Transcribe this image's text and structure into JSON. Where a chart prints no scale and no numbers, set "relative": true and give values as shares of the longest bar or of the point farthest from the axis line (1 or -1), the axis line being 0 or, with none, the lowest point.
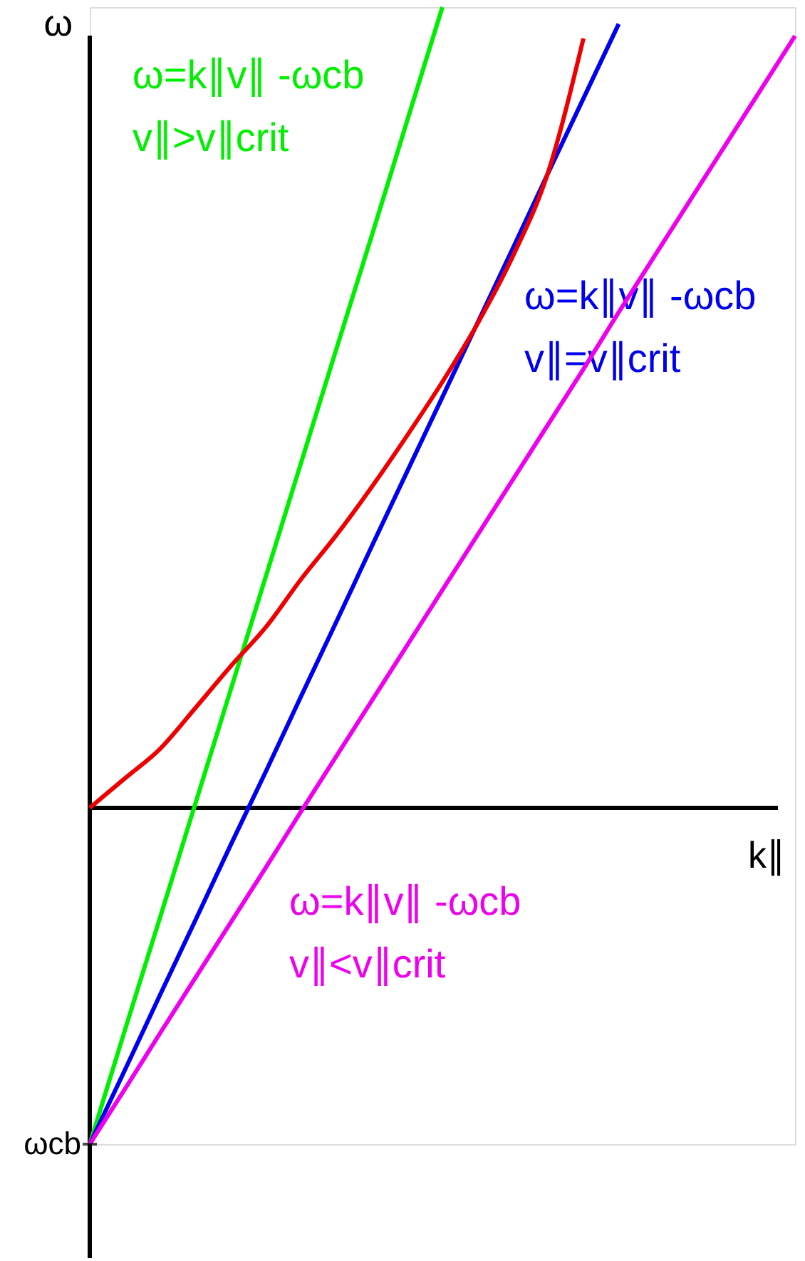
{
  "chart_data": {
    "type": "line",
    "relative": true,
    "xlabel": "k∥",
    "ylabel": "ω",
    "legend": false,
    "marker": "none",
    "line_style": "solid",
    "categories": [
      null,
      null,
      null,
      null,
      null,
      null,
      null,
      null,
      null,
      null,
      null,
      null,
      null,
      null,
      null,
      null,
      null,
      null,
      null,
      null,
      null
    ],
    "annotations": [
      "ωcb"
    ],
    "series": [
      {
        "name": "ω=k∥v∥ -ωcb\nv∥>v∥crit",
        "color": "#00ee00",
        "values": [
          -0.42,
          -0.277,
          -0.136,
          0.006,
          0.148,
          0.29,
          0.432,
          0.574,
          0.715,
          0.858,
          1.0,
          null,
          null,
          null,
          null,
          null,
          null,
          null,
          null,
          null,
          null
        ]
      },
      {
        "name": "ω=k∥v∥ -ωcb\nv∥=v∥crit",
        "color": "#0000ee",
        "values": [
          -0.42,
          -0.327,
          -0.233,
          -0.14,
          -0.046,
          0.046,
          0.14,
          0.233,
          0.327,
          0.42,
          0.513,
          0.606,
          0.699,
          0.793,
          0.886,
          0.979,
          null,
          null,
          null,
          null,
          null
        ]
      },
      {
        "name": "ω=k∥v∥ -ωcb\nv∥<v∥crit",
        "color": "#ee00ee",
        "values": [
          -0.42,
          -0.351,
          -0.281,
          -0.212,
          -0.143,
          -0.074,
          -0.004,
          0.065,
          0.134,
          0.203,
          0.272,
          0.341,
          0.41,
          0.479,
          0.548,
          0.619,
          0.688,
          0.757,
          0.826,
          0.895,
          0.964
        ]
      },
      {
        "color": "#ee0000",
        "values": [
          0,
          0.037,
          0.074,
          0.125,
          0.177,
          0.226,
          0.286,
          0.341,
          0.401,
          0.465,
          0.532,
          0.605,
          0.689,
          0.794,
          0.961,
          null,
          null,
          null,
          null,
          null,
          null
        ]
      }
    ]
  }
}
